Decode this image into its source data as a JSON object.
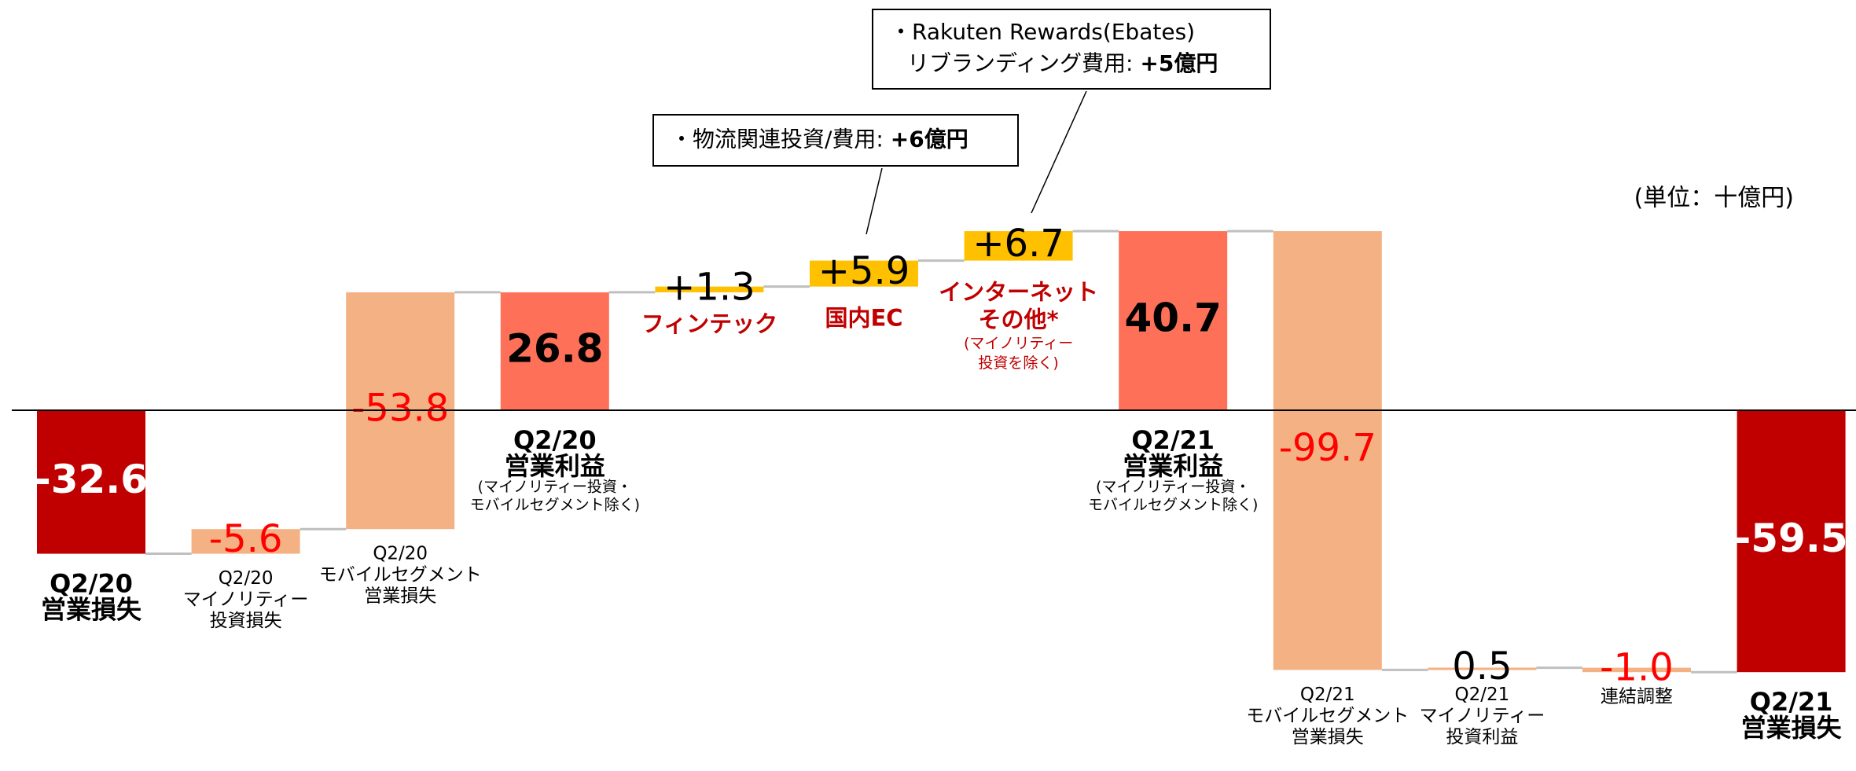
{
  "chart_data": {
    "type": "waterfall",
    "unit_label": "(単位：十億円)",
    "items": [
      {
        "label": [
          "Q2/20",
          "営業損失"
        ],
        "value": -32.6,
        "value_label": "-32.6",
        "kind": "total",
        "color": "#c00000"
      },
      {
        "label": [
          "Q2/20",
          "マイノリティー",
          "投資損失"
        ],
        "value": -5.6,
        "value_label": "-5.6",
        "kind": "removed",
        "color": "#f4b183"
      },
      {
        "label": [
          "Q2/20",
          "モバイルセグメント",
          "営業損失"
        ],
        "value": -53.8,
        "value_label": "-53.8",
        "kind": "removed",
        "color": "#f4b183"
      },
      {
        "label": [
          "Q2/20",
          "営業利益"
        ],
        "note": [
          "(マイノリティー投資・",
          "モバイルセグメント除く)"
        ],
        "value": 26.8,
        "value_label": "26.8",
        "kind": "total",
        "color": "#ff7058"
      },
      {
        "label": [
          "フィンテック"
        ],
        "value": 1.3,
        "value_label": "+1.3",
        "kind": "delta",
        "color": "#ffc000",
        "label_color": "#c00000"
      },
      {
        "label": [
          "国内EC"
        ],
        "value": 5.9,
        "value_label": "+5.9",
        "kind": "delta",
        "color": "#ffc000",
        "label_color": "#c00000"
      },
      {
        "label": [
          "インターネット",
          "その他*"
        ],
        "note": [
          "(マイノリティー",
          "投資を除く)"
        ],
        "value": 6.7,
        "value_label": "+6.7",
        "kind": "delta",
        "color": "#ffc000",
        "label_color": "#c00000"
      },
      {
        "label": [
          "Q2/21",
          "営業利益"
        ],
        "note": [
          "(マイノリティー投資・",
          "モバイルセグメント除く)"
        ],
        "value": 40.7,
        "value_label": "40.7",
        "kind": "total",
        "color": "#ff7058"
      },
      {
        "label": [
          "Q2/21",
          "モバイルセグメント",
          "営業損失"
        ],
        "value": -99.7,
        "value_label": "-99.7",
        "kind": "delta",
        "color": "#f4b183"
      },
      {
        "label": [
          "Q2/21",
          "マイノリティー",
          "投資利益"
        ],
        "value": 0.5,
        "value_label": "0.5",
        "kind": "delta",
        "color": "#f4b183"
      },
      {
        "label": [
          "連結調整"
        ],
        "value": -1.0,
        "value_label": "-1.0",
        "kind": "delta",
        "color": "#f4b183"
      },
      {
        "label": [
          "Q2/21",
          "営業損失"
        ],
        "value": -59.5,
        "value_label": "-59.5",
        "kind": "total",
        "color": "#c00000"
      }
    ],
    "annotations": [
      {
        "text": "・物流関連投資/費用: ",
        "emphasis": "+6億円",
        "item": 5
      },
      {
        "text": "・Rakuten Rewards(Ebates)",
        "text2": "リブランディング費用: ",
        "emphasis": "+5億円",
        "item": 6
      }
    ]
  }
}
